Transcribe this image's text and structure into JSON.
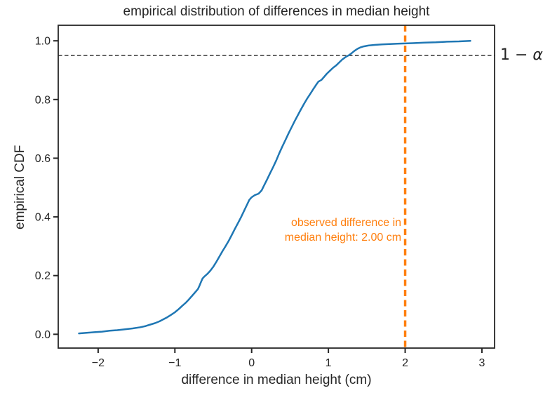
{
  "chart_data": {
    "type": "line",
    "subtype": "ecdf",
    "title": "empirical distribution of differences in median height",
    "xlabel": "difference in median height (cm)",
    "ylabel": "empirical CDF",
    "xlim": [
      -2.52,
      3.165
    ],
    "ylim": [
      -0.047,
      1.053
    ],
    "grid": false,
    "legend": "none",
    "x_ticks": {
      "values": [
        -2,
        -1,
        0,
        1,
        2,
        3
      ],
      "labels": [
        "−2",
        "−1",
        "0",
        "1",
        "2",
        "3"
      ]
    },
    "y_ticks": {
      "values": [
        0.0,
        0.2,
        0.4,
        0.6,
        0.8,
        1.0
      ],
      "labels": [
        "0.0",
        "0.2",
        "0.4",
        "0.6",
        "0.8",
        "1.0"
      ]
    },
    "series": [
      {
        "name": "ecdf",
        "color": "#1f77b4",
        "line_width": 2.5,
        "points": [
          [
            -2.25,
            0.003
          ],
          [
            -2.15,
            0.005
          ],
          [
            -2.05,
            0.007
          ],
          [
            -1.95,
            0.009
          ],
          [
            -1.85,
            0.012
          ],
          [
            -1.75,
            0.014
          ],
          [
            -1.65,
            0.017
          ],
          [
            -1.55,
            0.02
          ],
          [
            -1.45,
            0.024
          ],
          [
            -1.38,
            0.028
          ],
          [
            -1.32,
            0.033
          ],
          [
            -1.26,
            0.038
          ],
          [
            -1.2,
            0.044
          ],
          [
            -1.15,
            0.051
          ],
          [
            -1.1,
            0.058
          ],
          [
            -1.05,
            0.066
          ],
          [
            -1.0,
            0.075
          ],
          [
            -0.95,
            0.086
          ],
          [
            -0.9,
            0.098
          ],
          [
            -0.86,
            0.107
          ],
          [
            -0.82,
            0.118
          ],
          [
            -0.78,
            0.13
          ],
          [
            -0.74,
            0.142
          ],
          [
            -0.7,
            0.154
          ],
          [
            -0.68,
            0.165
          ],
          [
            -0.66,
            0.178
          ],
          [
            -0.64,
            0.19
          ],
          [
            -0.62,
            0.196
          ],
          [
            -0.58,
            0.205
          ],
          [
            -0.54,
            0.216
          ],
          [
            -0.5,
            0.23
          ],
          [
            -0.46,
            0.247
          ],
          [
            -0.42,
            0.265
          ],
          [
            -0.38,
            0.283
          ],
          [
            -0.34,
            0.3
          ],
          [
            -0.3,
            0.318
          ],
          [
            -0.26,
            0.338
          ],
          [
            -0.22,
            0.358
          ],
          [
            -0.18,
            0.378
          ],
          [
            -0.14,
            0.398
          ],
          [
            -0.1,
            0.42
          ],
          [
            -0.06,
            0.442
          ],
          [
            -0.03,
            0.458
          ],
          [
            0.0,
            0.467
          ],
          [
            0.04,
            0.474
          ],
          [
            0.09,
            0.479
          ],
          [
            0.13,
            0.49
          ],
          [
            0.16,
            0.506
          ],
          [
            0.2,
            0.527
          ],
          [
            0.24,
            0.549
          ],
          [
            0.28,
            0.57
          ],
          [
            0.32,
            0.592
          ],
          [
            0.36,
            0.617
          ],
          [
            0.4,
            0.64
          ],
          [
            0.44,
            0.662
          ],
          [
            0.48,
            0.684
          ],
          [
            0.52,
            0.705
          ],
          [
            0.56,
            0.726
          ],
          [
            0.6,
            0.746
          ],
          [
            0.64,
            0.765
          ],
          [
            0.68,
            0.784
          ],
          [
            0.72,
            0.802
          ],
          [
            0.76,
            0.818
          ],
          [
            0.8,
            0.834
          ],
          [
            0.84,
            0.85
          ],
          [
            0.87,
            0.861
          ],
          [
            0.91,
            0.867
          ],
          [
            0.94,
            0.876
          ],
          [
            0.98,
            0.888
          ],
          [
            1.02,
            0.898
          ],
          [
            1.06,
            0.908
          ],
          [
            1.1,
            0.916
          ],
          [
            1.14,
            0.926
          ],
          [
            1.18,
            0.936
          ],
          [
            1.22,
            0.944
          ],
          [
            1.26,
            0.95
          ],
          [
            1.3,
            0.957
          ],
          [
            1.34,
            0.966
          ],
          [
            1.38,
            0.973
          ],
          [
            1.42,
            0.978
          ],
          [
            1.46,
            0.981
          ],
          [
            1.52,
            0.984
          ],
          [
            1.6,
            0.986
          ],
          [
            1.7,
            0.988
          ],
          [
            1.8,
            0.989
          ],
          [
            1.9,
            0.99
          ],
          [
            2.0,
            0.991
          ],
          [
            2.1,
            0.992
          ],
          [
            2.25,
            0.994
          ],
          [
            2.4,
            0.995
          ],
          [
            2.55,
            0.997
          ],
          [
            2.7,
            0.998
          ],
          [
            2.85,
            1.0
          ]
        ]
      }
    ],
    "annotations": {
      "alpha_line": {
        "y": 0.95,
        "color": "#262626",
        "style": "dashed",
        "line_width": 1.3
      },
      "alpha_label": {
        "prefix": "1 − ",
        "symbol": "α"
      },
      "observed_line": {
        "x": 2.0,
        "color": "#ff7f0e",
        "style": "dashed",
        "line_width": 3.5
      },
      "observed_label": {
        "line1": "observed difference in",
        "line2": "median height: 2.00 cm",
        "x": 1.95,
        "y": 0.355,
        "align": "right",
        "color": "#ff7f0e"
      }
    },
    "style": {
      "spine_color": "#262626",
      "tick_color": "#262626",
      "text_color": "#262626",
      "background": "#ffffff"
    }
  }
}
